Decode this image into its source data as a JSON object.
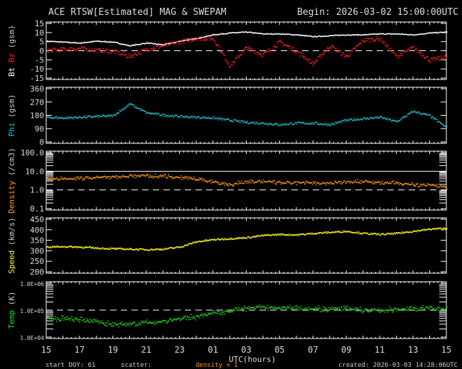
{
  "header": {
    "title": "ACE RTSW[Estimated] MAG & SWEPAM",
    "begin": "Begin: 2026-03-02 15:00:00UTC"
  },
  "footer": {
    "start_doy": "start DOY: 61",
    "scatter": "scatter:",
    "density_note": "density < 1",
    "created": "created: 2026-03-03 14:28:06UTC"
  },
  "colors": {
    "bt": "#ffffff",
    "bz": "#ff2020",
    "phi": "#20c0d0",
    "density": "#ff9a10",
    "speed": "#ffff20",
    "temp": "#20e020",
    "axes": "#ffffff"
  },
  "chart_data": [
    {
      "type": "scatter",
      "ylabel_parts": [
        "Bt",
        "Bz",
        "(gsm)"
      ],
      "ylim": [
        -15,
        15
      ],
      "yticks": [
        "15",
        "10",
        "5",
        "0",
        "-5",
        "-10",
        "-15"
      ],
      "reference_lines": [
        {
          "value": 0,
          "style": "dashed"
        }
      ],
      "x": [
        "15",
        "16",
        "17",
        "18",
        "19",
        "20",
        "21",
        "22",
        "23",
        "00",
        "01",
        "02",
        "03",
        "04",
        "05",
        "06",
        "07",
        "08",
        "09",
        "10",
        "11",
        "12",
        "13",
        "14",
        "15"
      ],
      "series": [
        {
          "name": "Bt",
          "values": [
            5.5,
            5,
            4.5,
            5.5,
            5,
            3,
            4.5,
            3.5,
            5.5,
            7,
            9,
            10,
            10.5,
            9.5,
            9.5,
            9,
            8,
            8.5,
            9,
            9,
            9.5,
            9.5,
            9,
            10,
            10.5
          ]
        },
        {
          "name": "Bz",
          "values": [
            0.5,
            1,
            1.5,
            0.5,
            0,
            -3,
            1,
            3,
            5,
            7,
            7,
            -8,
            2,
            -2,
            5,
            0,
            -7,
            3,
            -3,
            6,
            7,
            -3,
            2,
            -5,
            -3
          ]
        }
      ]
    },
    {
      "type": "scatter",
      "ylabel_parts": [
        "Phi",
        "(gsm)"
      ],
      "ylim": [
        0,
        360
      ],
      "yticks": [
        "360",
        "270",
        "180",
        "90",
        "0"
      ],
      "series": [
        {
          "name": "Phi",
          "values": [
            170,
            165,
            170,
            175,
            180,
            260,
            200,
            185,
            175,
            170,
            165,
            150,
            135,
            130,
            120,
            130,
            130,
            120,
            150,
            160,
            170,
            140,
            210,
            180,
            100
          ]
        }
      ]
    },
    {
      "type": "scatter",
      "ylabel_parts": [
        "Density",
        "(/cm3)"
      ],
      "scale": "log",
      "ylim": [
        0.1,
        100
      ],
      "yticks": [
        "100.0",
        "10.0",
        "1.0",
        "0.1"
      ],
      "reference_lines": [
        {
          "value": 10,
          "style": "solid"
        },
        {
          "value": 1,
          "style": "dashed"
        }
      ],
      "series": [
        {
          "name": "Density",
          "values": [
            4,
            4,
            4.5,
            5,
            5,
            6,
            6,
            6,
            5,
            4,
            3,
            2,
            3,
            3,
            2.5,
            2.5,
            2.5,
            2.5,
            3,
            3,
            2.5,
            2.5,
            2,
            2,
            1.5
          ]
        }
      ]
    },
    {
      "type": "scatter",
      "ylabel_parts": [
        "Speed",
        "(km/s)"
      ],
      "ylim": [
        200,
        450
      ],
      "yticks": [
        "450",
        "400",
        "350",
        "300",
        "250",
        "200"
      ],
      "series": [
        {
          "name": "Speed",
          "values": [
            320,
            322,
            320,
            315,
            312,
            310,
            308,
            310,
            320,
            345,
            355,
            360,
            365,
            375,
            380,
            378,
            385,
            390,
            395,
            385,
            380,
            385,
            395,
            405,
            410
          ]
        }
      ]
    },
    {
      "type": "scatter",
      "ylabel_parts": [
        "Temp",
        "(K)"
      ],
      "scale": "log",
      "ylim": [
        10000,
        1000000
      ],
      "yticks": [
        "1.0E+06",
        "1.0E+05",
        "1.0E+04"
      ],
      "reference_lines": [
        {
          "value": 100000,
          "style": "dashed"
        }
      ],
      "series": [
        {
          "name": "Temp",
          "values": [
            50000,
            50000,
            45000,
            40000,
            30000,
            32000,
            35000,
            40000,
            50000,
            60000,
            80000,
            100000,
            120000,
            130000,
            130000,
            130000,
            120000,
            110000,
            120000,
            100000,
            100000,
            110000,
            120000,
            120000,
            110000
          ]
        }
      ]
    }
  ],
  "xaxis": {
    "label": "UTC(hours)",
    "ticks": [
      "15",
      "17",
      "19",
      "21",
      "23",
      "01",
      "03",
      "05",
      "07",
      "09",
      "11",
      "13",
      "15"
    ]
  }
}
